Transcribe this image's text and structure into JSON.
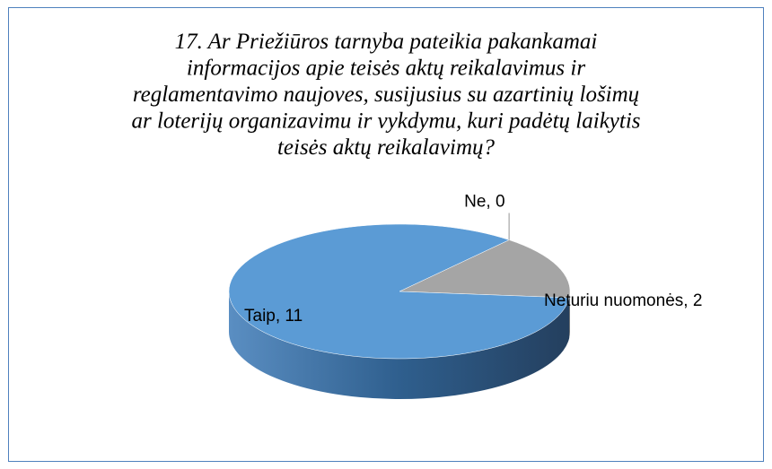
{
  "chart_data": {
    "type": "pie",
    "title": [
      "17. Ar Priežiūros tarnyba pateikia pakankamai",
      "informacijos apie teisės aktų reikalavimus ir",
      "reglamentavimo naujoves, susijusius su azartinių lošimų",
      "ar loterijų organizavimu ir vykdymu, kuri padėtų laikytis",
      "teisės aktų reikalavimų?"
    ],
    "values": [
      11,
      0,
      2
    ],
    "value_labels": [
      "Taip, 11",
      "Ne, 0",
      "Neturiu nuomonės, 2"
    ],
    "colors": [
      "#5b9bd5",
      "#7fb2e0",
      "#a5a5a5"
    ]
  }
}
